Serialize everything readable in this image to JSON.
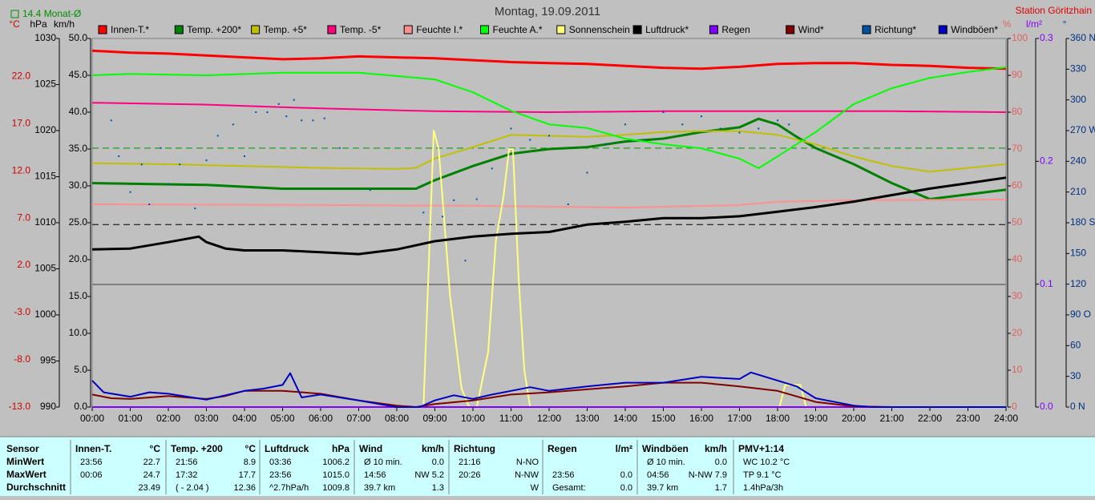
{
  "chart_data": {
    "type": "line",
    "title": "Montag, 19.09.2011",
    "station": "Station Göritzhain",
    "monthly_avg": {
      "value": 14.4,
      "label": "14.4 Monat-Ø",
      "color": "#009000",
      "axis": "temp"
    },
    "reference_lines": [
      {
        "axis": "hpa",
        "value": 1009.8,
        "color": "#000000"
      }
    ],
    "xlim": [
      0,
      24
    ],
    "xticks": [
      {
        "value": 0,
        "label": "00:00"
      },
      {
        "value": 1,
        "label": "01:00"
      },
      {
        "value": 2,
        "label": "02:00"
      },
      {
        "value": 3,
        "label": "03:00"
      },
      {
        "value": 4,
        "label": "04:00"
      },
      {
        "value": 5,
        "label": "05:00"
      },
      {
        "value": 6,
        "label": "06:00"
      },
      {
        "value": 7,
        "label": "07:00"
      },
      {
        "value": 8,
        "label": "08:00"
      },
      {
        "value": 9,
        "label": "09:00"
      },
      {
        "value": 10,
        "label": "10:00"
      },
      {
        "value": 11,
        "label": "11:00"
      },
      {
        "value": 12,
        "label": "12:00"
      },
      {
        "value": 13,
        "label": "13:00"
      },
      {
        "value": 14,
        "label": "14:00"
      },
      {
        "value": 15,
        "label": "15:00"
      },
      {
        "value": 16,
        "label": "16:00"
      },
      {
        "value": 17,
        "label": "17:00"
      },
      {
        "value": 18,
        "label": "18:00"
      },
      {
        "value": 19,
        "label": "19:00"
      },
      {
        "value": 20,
        "label": "20:00"
      },
      {
        "value": 21,
        "label": "21:00"
      },
      {
        "value": 22,
        "label": "22:00"
      },
      {
        "value": 23,
        "label": "23:00"
      },
      {
        "value": 24,
        "label": "24:00"
      }
    ],
    "axes": {
      "temp": {
        "label": "°C",
        "color": "#d00000",
        "ylim": [
          -13,
          26
        ],
        "yticks": [
          {
            "value": -13,
            "label": "-13.0"
          },
          {
            "value": -8,
            "label": "-8.0"
          },
          {
            "value": -3,
            "label": "-3.0"
          },
          {
            "value": 2,
            "label": "2.0"
          },
          {
            "value": 7,
            "label": "7.0"
          },
          {
            "value": 12,
            "label": "12.0"
          },
          {
            "value": 17,
            "label": "17.0"
          },
          {
            "value": 22,
            "label": "22.0"
          }
        ]
      },
      "hpa": {
        "label": "hPa",
        "color": "#000000",
        "ylim": [
          990,
          1030
        ],
        "yticks": [
          990,
          995,
          1000,
          1005,
          1010,
          1015,
          1020,
          1025,
          1030
        ]
      },
      "kmh": {
        "label": "km/h",
        "color": "#000000",
        "ylim": [
          0,
          50
        ],
        "yticks": [
          {
            "value": 0,
            "label": "0.0"
          },
          {
            "value": 5,
            "label": "5.0"
          },
          {
            "value": 10,
            "label": "10.0"
          },
          {
            "value": 15,
            "label": "15.0"
          },
          {
            "value": 20,
            "label": "20.0"
          },
          {
            "value": 25,
            "label": "25.0"
          },
          {
            "value": 30,
            "label": "30.0"
          },
          {
            "value": 35,
            "label": "35.0"
          },
          {
            "value": 40,
            "label": "40.0"
          },
          {
            "value": 45,
            "label": "45.0"
          },
          {
            "value": 50,
            "label": "50.0"
          }
        ]
      },
      "pct": {
        "label": "%",
        "color": "#e06060",
        "ylim": [
          0,
          100
        ],
        "yticks": [
          0,
          10,
          20,
          30,
          40,
          50,
          60,
          70,
          80,
          90,
          100
        ]
      },
      "rain": {
        "label": "l/m²",
        "color": "#8000ff",
        "ylim": [
          0,
          0.3
        ],
        "yticks": [
          {
            "value": 0,
            "label": "0.0"
          },
          0.1,
          0.2,
          0.3
        ]
      },
      "dir": {
        "label": "°",
        "color": "#003080",
        "ylim": [
          0,
          360
        ],
        "yticks": [
          {
            "value": 0,
            "label": "0 N"
          },
          30,
          60,
          {
            "value": 90,
            "label": "90 O"
          },
          120,
          150,
          {
            "value": 180,
            "label": "180 S"
          },
          210,
          240,
          {
            "value": 270,
            "label": "270 W"
          },
          300,
          330,
          {
            "value": 360,
            "label": "360 N"
          }
        ]
      }
    },
    "series": [
      {
        "name": "Innen-T.*",
        "color": "#ff0000",
        "axis": "temp",
        "width": 3,
        "x": [
          0,
          1,
          2,
          3,
          4,
          5,
          6,
          7,
          8,
          9,
          10,
          11,
          12,
          13,
          14,
          15,
          16,
          17,
          18,
          19,
          20,
          21,
          22,
          23,
          24
        ],
        "values": [
          24.7,
          24.5,
          24.4,
          24.2,
          24.0,
          23.8,
          23.9,
          24.1,
          24.0,
          23.9,
          23.7,
          23.5,
          23.4,
          23.3,
          23.1,
          22.9,
          22.8,
          23.0,
          23.3,
          23.4,
          23.4,
          23.2,
          23.1,
          22.9,
          22.8
        ]
      },
      {
        "name": "Temp. +200*",
        "color": "#008000",
        "axis": "temp",
        "width": 3,
        "x": [
          0,
          3,
          5,
          6,
          7,
          8,
          8.5,
          9,
          10,
          11,
          12,
          13,
          14,
          15,
          16,
          17,
          17.5,
          18,
          18.5,
          19,
          20,
          21,
          22,
          23,
          24
        ],
        "values": [
          10.7,
          10.5,
          10.1,
          10.1,
          10.1,
          10.1,
          10.1,
          11.0,
          12.5,
          13.8,
          14.3,
          14.5,
          15.1,
          15.4,
          16.1,
          16.6,
          17.5,
          16.9,
          15.6,
          14.4,
          12.7,
          10.7,
          9.0,
          9.5,
          10.0
        ]
      },
      {
        "name": "Temp. +5*",
        "color": "#c0c000",
        "axis": "temp",
        "width": 2,
        "x": [
          0,
          2,
          4,
          6,
          8,
          8.5,
          9,
          10,
          11,
          12,
          13,
          14,
          15,
          16,
          17,
          18,
          19,
          20,
          21,
          22,
          23,
          24
        ],
        "values": [
          12.8,
          12.7,
          12.5,
          12.3,
          12.2,
          12.3,
          13.3,
          14.5,
          15.8,
          15.7,
          15.6,
          15.8,
          16.1,
          16.2,
          16.2,
          15.8,
          14.8,
          13.5,
          12.5,
          11.9,
          12.3,
          12.7
        ]
      },
      {
        "name": "Temp. -5*",
        "color": "#ff0080",
        "axis": "temp",
        "width": 2,
        "x": [
          0,
          3,
          6,
          9,
          12,
          15,
          18,
          21,
          24
        ],
        "values": [
          19.2,
          19.0,
          18.6,
          18.3,
          18.2,
          18.3,
          18.3,
          18.3,
          18.2
        ]
      },
      {
        "name": "Feuchte I.*",
        "color": "#ff9090",
        "axis": "pct",
        "width": 2,
        "x": [
          0,
          6,
          10,
          14,
          17,
          18,
          20,
          24
        ],
        "values": [
          55.0,
          54.8,
          54.6,
          54.1,
          54.8,
          55.7,
          56.1,
          56.3
        ]
      },
      {
        "name": "Feuchte A.*",
        "color": "#00ff00",
        "axis": "pct",
        "width": 2,
        "x": [
          0,
          1,
          3,
          5,
          7,
          8,
          9,
          10,
          11,
          12,
          13,
          14,
          15,
          16,
          17,
          17.5,
          18,
          19,
          20,
          21,
          22,
          23,
          24
        ],
        "values": [
          90.0,
          90.4,
          90.0,
          90.7,
          90.7,
          89.8,
          88.9,
          85.4,
          80.4,
          76.7,
          75.7,
          72.8,
          71.3,
          70.2,
          67.4,
          64.8,
          68.0,
          74.6,
          82.2,
          86.5,
          89.3,
          90.9,
          92.2
        ]
      },
      {
        "name": "Sonnenschein",
        "color": "#ffff80",
        "axis": "pct",
        "width": 2,
        "x": [
          0,
          8.7,
          8.97,
          9.1,
          9.4,
          9.7,
          9.9,
          10.1,
          10.4,
          10.6,
          10.8,
          10.95,
          11.05,
          11.2,
          11.35,
          11.5,
          18.05,
          18.2,
          18.6,
          18.75,
          24
        ],
        "values": [
          0,
          0,
          75,
          70,
          30,
          5,
          0,
          0,
          15,
          45,
          57,
          70,
          70,
          35,
          10,
          0,
          0,
          6,
          6,
          0,
          0
        ]
      },
      {
        "name": "Luftdruck*",
        "color": "#000000",
        "axis": "hpa",
        "width": 3,
        "x": [
          0,
          1,
          2,
          2.8,
          3,
          3.5,
          4,
          5,
          6,
          7,
          8,
          9,
          10,
          11,
          12,
          13,
          14,
          15,
          16,
          17,
          18,
          19,
          20,
          21,
          22,
          23,
          24
        ],
        "values": [
          1007.1,
          1007.2,
          1007.9,
          1008.5,
          1007.9,
          1007.2,
          1007.0,
          1007.0,
          1006.8,
          1006.6,
          1007.1,
          1008.0,
          1008.5,
          1008.8,
          1009.0,
          1009.8,
          1010.1,
          1010.5,
          1010.5,
          1010.7,
          1011.2,
          1011.7,
          1012.3,
          1013.0,
          1013.7,
          1014.3,
          1014.9
        ]
      },
      {
        "name": "Regen",
        "color": "#8000ff",
        "axis": "rain",
        "width": 2,
        "x": [
          0,
          24
        ],
        "values": [
          0,
          0
        ]
      },
      {
        "name": "Wind*",
        "color": "#800000",
        "axis": "kmh",
        "width": 2,
        "x": [
          0,
          0.5,
          1,
          2,
          3,
          3.5,
          4,
          5,
          6,
          7,
          8,
          8.5,
          9,
          10,
          11,
          12,
          13,
          14,
          15,
          16,
          17,
          18,
          19,
          20,
          21,
          24
        ],
        "values": [
          1.7,
          1.2,
          1.1,
          1.5,
          1.1,
          1.5,
          2.2,
          2.2,
          1.8,
          0.9,
          0.2,
          0,
          0.4,
          0.9,
          1.7,
          2.0,
          2.4,
          2.8,
          3.3,
          3.3,
          2.8,
          2.2,
          0.7,
          0.1,
          0,
          0
        ]
      },
      {
        "name": "Richtung*",
        "color": "#0050a0",
        "axis": "dir",
        "style": "points",
        "x": [
          0.5,
          0.7,
          1.0,
          1.3,
          1.5,
          1.8,
          2.0,
          2.3,
          2.7,
          3.0,
          3.3,
          3.7,
          4.0,
          4.3,
          4.6,
          4.9,
          5.1,
          5.3,
          5.5,
          5.8,
          6.1,
          6.5,
          7.3,
          8.7,
          9.2,
          9.5,
          9.8,
          10.1,
          10.5,
          11.0,
          11.5,
          12.0,
          12.5,
          13.0,
          13.5,
          14.0,
          14.5,
          15.0,
          15.5,
          16.0,
          16.5,
          17.0,
          17.5,
          18.0,
          18.3
        ],
        "values": [
          280,
          245,
          210,
          237,
          198,
          253,
          218,
          237,
          194,
          241,
          265,
          276,
          245,
          288,
          288,
          296,
          284,
          300,
          280,
          280,
          282,
          253,
          212,
          190,
          186,
          202,
          143,
          203,
          233,
          272,
          261,
          265,
          198,
          229,
          257,
          276,
          261,
          288,
          276,
          284,
          272,
          268,
          272,
          280,
          276
        ]
      },
      {
        "name": "Windböen*",
        "color": "#0000c0",
        "axis": "kmh",
        "width": 2,
        "x": [
          0,
          0.3,
          1,
          1.5,
          2,
          3,
          3.5,
          4,
          4.5,
          5,
          5.2,
          5.5,
          6,
          7,
          8,
          8.6,
          9,
          9.5,
          10,
          10.5,
          11,
          11.5,
          12,
          13,
          14,
          15,
          16,
          17,
          17.3,
          18,
          18.5,
          19,
          20,
          20.5,
          24
        ],
        "values": [
          3.6,
          2.0,
          1.4,
          2.0,
          1.8,
          1.0,
          1.6,
          2.2,
          2.5,
          3.0,
          4.6,
          1.3,
          1.7,
          0.9,
          0,
          0,
          0.9,
          1.6,
          1.1,
          1.7,
          2.2,
          2.7,
          2.2,
          2.8,
          3.3,
          3.3,
          4.1,
          3.8,
          4.7,
          3.6,
          2.8,
          1.2,
          0.2,
          0,
          0
        ]
      }
    ]
  },
  "table": {
    "header": "Sensor",
    "row_labels": [
      "MinWert",
      "MaxWert",
      "Durchschnitt"
    ],
    "groups": [
      {
        "title": "Innen-T.",
        "unit": "°C",
        "rows": [
          [
            "23:56",
            "22.7"
          ],
          [
            "00:06",
            "24.7"
          ],
          [
            null,
            "23.49"
          ]
        ]
      },
      {
        "title": "Temp. +200",
        "unit": "°C",
        "rows": [
          [
            "21:56",
            "8.9"
          ],
          [
            "17:32",
            "17.7"
          ],
          [
            "( - 2.04 )",
            "12.36"
          ]
        ]
      },
      {
        "title": "Luftdruck",
        "unit": "hPa",
        "rows": [
          [
            "03:36",
            "1006.2"
          ],
          [
            "23:56",
            "1015.0"
          ],
          [
            "^2.7hPa/h",
            "1009.8"
          ]
        ]
      },
      {
        "title": "Wind",
        "unit": "km/h",
        "rows": [
          [
            "Ø 10 min.",
            "0.0"
          ],
          [
            "14:56",
            "NW 5.2"
          ],
          [
            "39.7 km",
            "1.3"
          ]
        ]
      },
      {
        "title": "Richtung",
        "unit": null,
        "rows": [
          [
            "21:16",
            "N-NO"
          ],
          [
            "20:26",
            "N-NW"
          ],
          [
            null,
            "W"
          ]
        ]
      },
      {
        "title": "Regen",
        "unit": "l/m²",
        "rows": [
          [
            null,
            null
          ],
          [
            "23:56",
            "0.0"
          ],
          [
            "Gesamt:",
            "0.0"
          ]
        ]
      },
      {
        "title": "Windböen",
        "unit": "km/h",
        "rows": [
          [
            "Ø 10 min.",
            "0.0"
          ],
          [
            "04:56",
            "N-NW 7.9"
          ],
          [
            "39.7 km",
            "1.7"
          ]
        ]
      },
      {
        "title": "PMV+1:14",
        "unit": null,
        "rows": [
          [
            "WC 10.2 °C",
            null
          ],
          [
            "TP 9.1 °C",
            null
          ],
          [
            "1.4hPa/3h",
            null
          ]
        ]
      }
    ]
  }
}
